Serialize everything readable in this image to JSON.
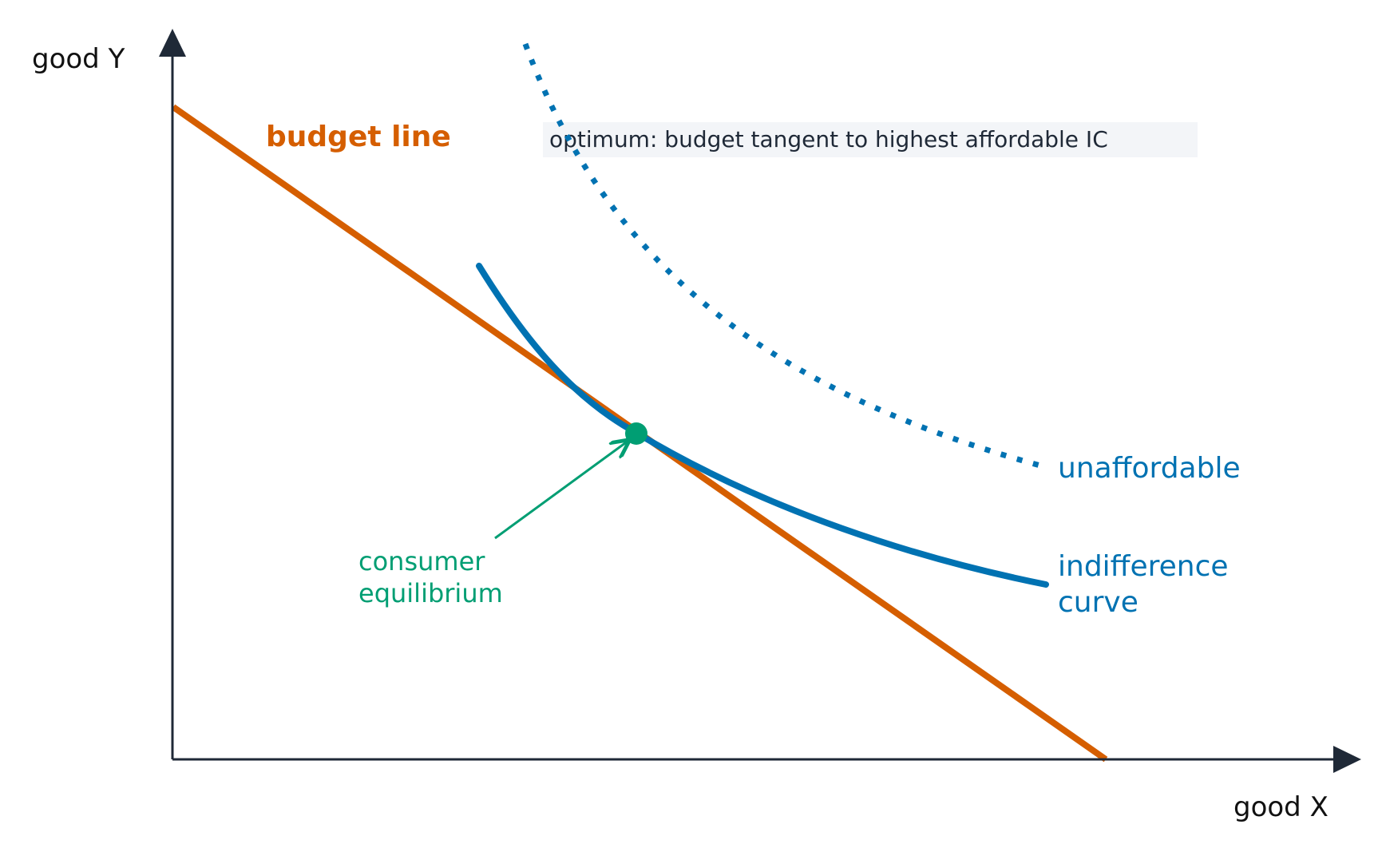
{
  "diagram": {
    "axes": {
      "x_label": "good X",
      "y_label": "good Y"
    },
    "labels": {
      "budget_line": "budget line",
      "unaffordable": "unaffordable",
      "indifference_line1": "indifference",
      "indifference_line2": "curve",
      "equilibrium_line1": "consumer",
      "equilibrium_line2": "equilibrium"
    },
    "annotation": "optimum: budget tangent to highest affordable IC",
    "colors": {
      "axis": "#1f2937",
      "budget": "#d55e00",
      "curve": "#0072b2",
      "equilibrium": "#009e73",
      "note_bg": "#f3f5f8"
    }
  }
}
